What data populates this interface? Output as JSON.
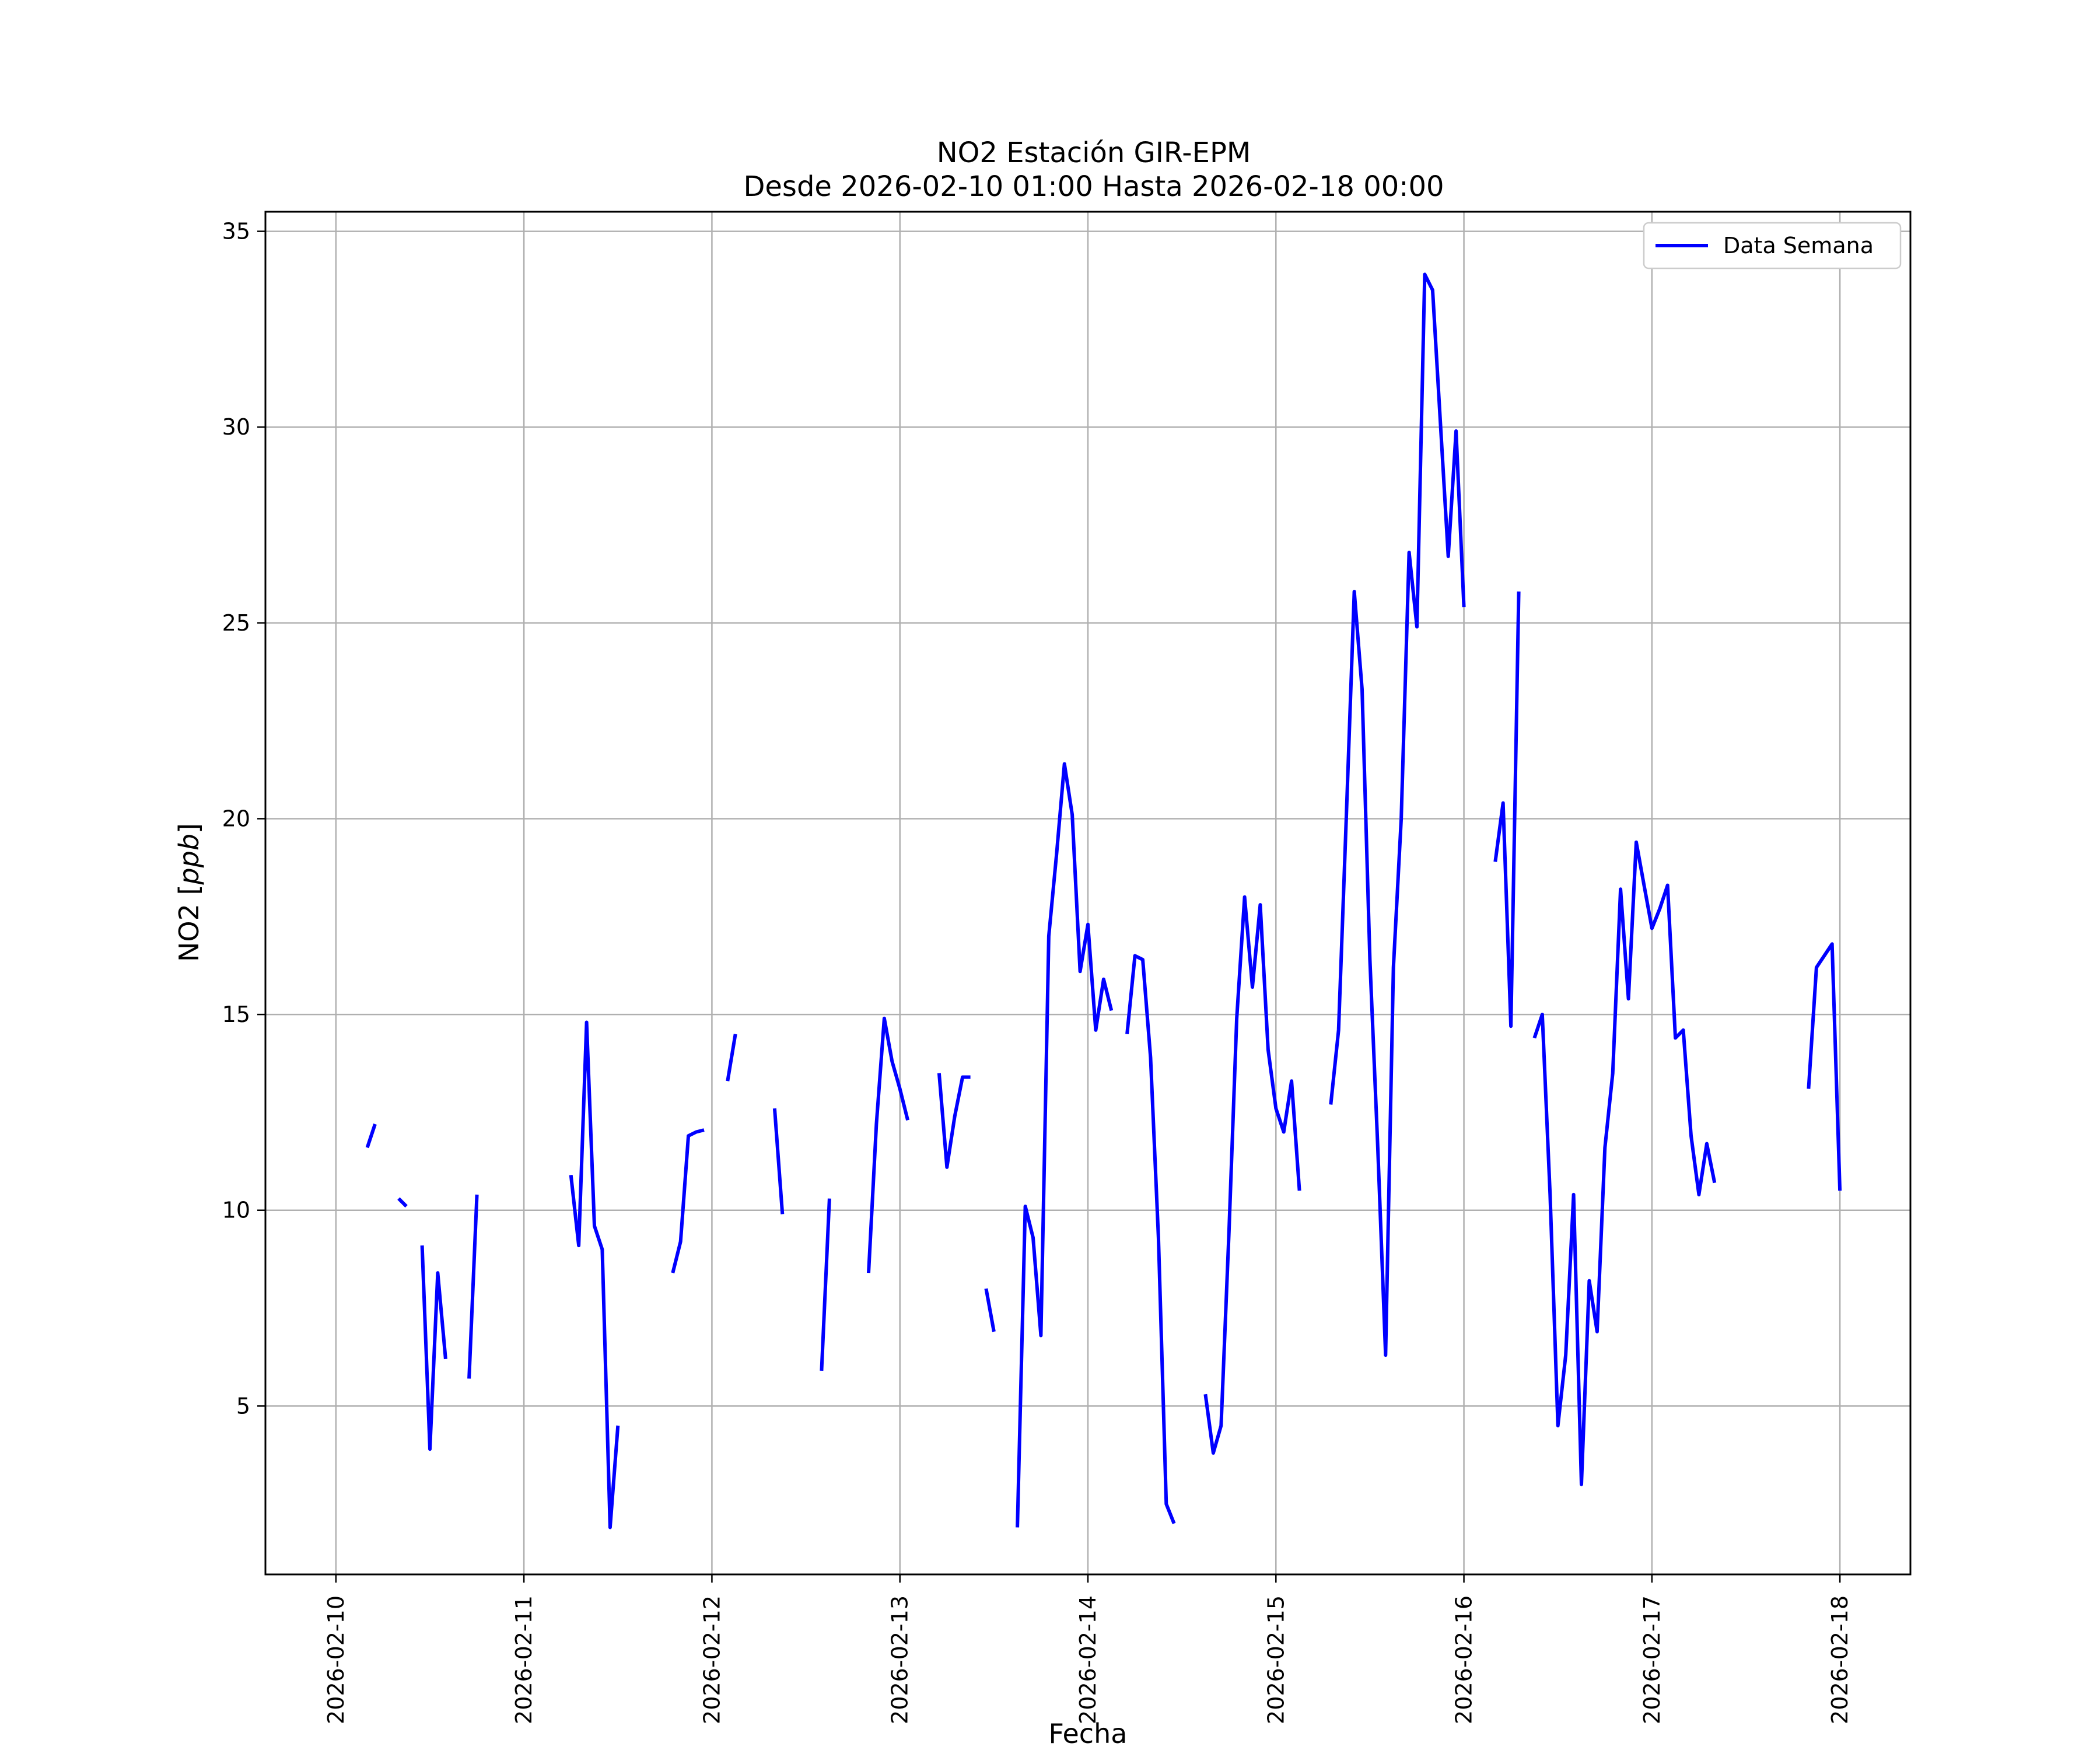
{
  "chart_data": {
    "type": "line",
    "title": "NO2 Estación GIR-EPM",
    "subtitle": "Desde 2026-02-10 01:00 Hasta 2026-02-18 00:00",
    "xlabel": "Fecha",
    "ylabel": "NO2 [ppb]",
    "ylabel_prefix": "NO2 [",
    "ylabel_unit": "ppb",
    "ylabel_suffix": "]",
    "xlim": [
      "2026-02-09 15:00",
      "2026-02-18 09:00"
    ],
    "ylim": [
      0.7,
      35.5
    ],
    "x_ticks": [
      "2026-02-10",
      "2026-02-11",
      "2026-02-12",
      "2026-02-13",
      "2026-02-14",
      "2026-02-15",
      "2026-02-16",
      "2026-02-17",
      "2026-02-18"
    ],
    "y_ticks": [
      5,
      10,
      15,
      20,
      25,
      30,
      35
    ],
    "grid": true,
    "legend_position": "top-right",
    "series": [
      {
        "name": "Data Semana",
        "color": "#0000ff",
        "segments": [
          [
            [
              "2026-02-10 04:00",
              11.6
            ],
            [
              "2026-02-10 05:00",
              12.2
            ]
          ],
          [
            [
              "2026-02-10 08:00",
              10.3
            ],
            [
              "2026-02-10 09:00",
              10.1
            ]
          ],
          [
            [
              "2026-02-10 11:00",
              9.1
            ],
            [
              "2026-02-10 12:00",
              3.9
            ],
            [
              "2026-02-10 13:00",
              8.4
            ],
            [
              "2026-02-10 14:00",
              6.2
            ]
          ],
          [
            [
              "2026-02-10 17:00",
              5.7
            ],
            [
              "2026-02-10 18:00",
              10.4
            ]
          ],
          [
            [
              "2026-02-11 06:00",
              10.9
            ],
            [
              "2026-02-11 07:00",
              9.1
            ],
            [
              "2026-02-11 08:00",
              14.8
            ],
            [
              "2026-02-11 09:00",
              9.6
            ],
            [
              "2026-02-11 10:00",
              9.0
            ],
            [
              "2026-02-11 11:00",
              1.9
            ],
            [
              "2026-02-11 12:00",
              4.5
            ]
          ],
          [
            [
              "2026-02-11 19:00",
              8.4
            ],
            [
              "2026-02-11 20:00",
              9.2
            ],
            [
              "2026-02-11 21:00",
              11.9
            ],
            [
              "2026-02-11 22:00",
              12.0
            ],
            [
              "2026-02-11 23:00",
              12.05
            ]
          ],
          [
            [
              "2026-02-12 02:00",
              13.3
            ],
            [
              "2026-02-12 03:00",
              14.5
            ]
          ],
          [
            [
              "2026-02-12 08:00",
              12.6
            ],
            [
              "2026-02-12 09:00",
              9.9
            ]
          ],
          [
            [
              "2026-02-12 14:00",
              5.9
            ],
            [
              "2026-02-12 15:00",
              10.3
            ]
          ],
          [
            [
              "2026-02-12 20:00",
              8.4
            ],
            [
              "2026-02-12 21:00",
              12.2
            ],
            [
              "2026-02-12 22:00",
              14.9
            ],
            [
              "2026-02-12 23:00",
              13.8
            ],
            [
              "2026-02-13 00:00",
              13.1
            ],
            [
              "2026-02-13 01:00",
              12.3
            ]
          ],
          [
            [
              "2026-02-13 05:00",
              13.5
            ],
            [
              "2026-02-13 06:00",
              11.1
            ],
            [
              "2026-02-13 07:00",
              12.4
            ],
            [
              "2026-02-13 08:00",
              13.4
            ],
            [
              "2026-02-13 09:00",
              13.4
            ]
          ],
          [
            [
              "2026-02-13 11:00",
              8.0
            ],
            [
              "2026-02-13 12:00",
              6.9
            ]
          ],
          [
            [
              "2026-02-13 15:00",
              1.9
            ],
            [
              "2026-02-13 16:00",
              10.1
            ],
            [
              "2026-02-13 17:00",
              9.3
            ],
            [
              "2026-02-13 18:00",
              6.8
            ],
            [
              "2026-02-13 19:00",
              17.0
            ],
            [
              "2026-02-13 20:00",
              19.1
            ],
            [
              "2026-02-13 21:00",
              21.4
            ],
            [
              "2026-02-13 22:00",
              20.1
            ],
            [
              "2026-02-13 23:00",
              16.1
            ],
            [
              "2026-02-14 00:00",
              17.3
            ],
            [
              "2026-02-14 01:00",
              14.6
            ],
            [
              "2026-02-14 02:00",
              15.9
            ],
            [
              "2026-02-14 03:00",
              15.1
            ]
          ],
          [
            [
              "2026-02-14 05:00",
              14.5
            ],
            [
              "2026-02-14 06:00",
              16.5
            ],
            [
              "2026-02-14 07:00",
              16.4
            ],
            [
              "2026-02-14 08:00",
              13.9
            ],
            [
              "2026-02-14 09:00",
              9.3
            ],
            [
              "2026-02-14 10:00",
              2.5
            ],
            [
              "2026-02-14 11:00",
              2.0
            ]
          ],
          [
            [
              "2026-02-14 15:00",
              5.3
            ],
            [
              "2026-02-14 16:00",
              3.8
            ],
            [
              "2026-02-14 17:00",
              4.5
            ],
            [
              "2026-02-14 18:00",
              9.4
            ],
            [
              "2026-02-14 19:00",
              14.9
            ],
            [
              "2026-02-14 20:00",
              18.0
            ],
            [
              "2026-02-14 21:00",
              15.7
            ],
            [
              "2026-02-14 22:00",
              17.8
            ],
            [
              "2026-02-14 23:00",
              14.1
            ],
            [
              "2026-02-15 00:00",
              12.6
            ],
            [
              "2026-02-15 01:00",
              12.0
            ],
            [
              "2026-02-15 02:00",
              13.3
            ],
            [
              "2026-02-15 03:00",
              10.5
            ]
          ],
          [
            [
              "2026-02-15 07:00",
              12.7
            ],
            [
              "2026-02-15 08:00",
              14.6
            ],
            [
              "2026-02-15 09:00",
              20.1
            ],
            [
              "2026-02-15 10:00",
              25.8
            ],
            [
              "2026-02-15 11:00",
              23.3
            ],
            [
              "2026-02-15 12:00",
              16.4
            ],
            [
              "2026-02-15 13:00",
              11.6
            ],
            [
              "2026-02-15 14:00",
              6.3
            ],
            [
              "2026-02-15 15:00",
              16.2
            ],
            [
              "2026-02-15 16:00",
              20.0
            ],
            [
              "2026-02-15 17:00",
              26.8
            ],
            [
              "2026-02-15 18:00",
              24.9
            ],
            [
              "2026-02-15 19:00",
              33.9
            ],
            [
              "2026-02-15 20:00",
              33.5
            ],
            [
              "2026-02-15 21:00",
              30.1
            ],
            [
              "2026-02-15 22:00",
              26.7
            ],
            [
              "2026-02-15 23:00",
              29.9
            ],
            [
              "2026-02-16 00:00",
              25.4
            ]
          ],
          [
            [
              "2026-02-16 04:00",
              18.9
            ],
            [
              "2026-02-16 05:00",
              20.4
            ],
            [
              "2026-02-16 06:00",
              14.7
            ],
            [
              "2026-02-16 07:00",
              25.8
            ]
          ],
          [
            [
              "2026-02-16 09:00",
              14.4
            ],
            [
              "2026-02-16 10:00",
              15.0
            ],
            [
              "2026-02-16 11:00",
              10.4
            ],
            [
              "2026-02-16 12:00",
              4.5
            ],
            [
              "2026-02-16 13:00",
              6.3
            ],
            [
              "2026-02-16 14:00",
              10.4
            ],
            [
              "2026-02-16 15:00",
              3.0
            ],
            [
              "2026-02-16 16:00",
              8.2
            ],
            [
              "2026-02-16 17:00",
              6.9
            ],
            [
              "2026-02-16 18:00",
              11.6
            ],
            [
              "2026-02-16 19:00",
              13.5
            ],
            [
              "2026-02-16 20:00",
              18.2
            ],
            [
              "2026-02-16 21:00",
              15.4
            ],
            [
              "2026-02-16 22:00",
              19.4
            ],
            [
              "2026-02-16 23:00",
              18.3
            ],
            [
              "2026-02-17 00:00",
              17.2
            ],
            [
              "2026-02-17 01:00",
              17.7
            ],
            [
              "2026-02-17 02:00",
              18.3
            ],
            [
              "2026-02-17 03:00",
              14.4
            ],
            [
              "2026-02-17 04:00",
              14.6
            ],
            [
              "2026-02-17 05:00",
              11.9
            ],
            [
              "2026-02-17 06:00",
              10.4
            ],
            [
              "2026-02-17 07:00",
              11.7
            ],
            [
              "2026-02-17 08:00",
              10.7
            ]
          ],
          [
            [
              "2026-02-17 20:00",
              13.1
            ],
            [
              "2026-02-17 21:00",
              16.2
            ],
            [
              "2026-02-17 22:00",
              16.5
            ],
            [
              "2026-02-17 23:00",
              16.8
            ],
            [
              "2026-02-18 00:00",
              10.5
            ]
          ]
        ]
      }
    ]
  }
}
